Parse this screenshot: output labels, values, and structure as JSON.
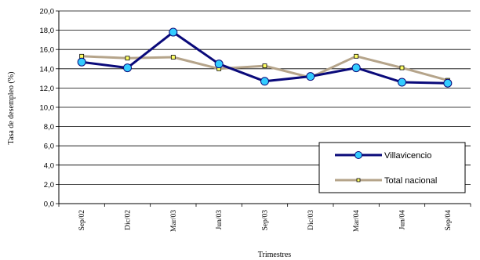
{
  "chart_data": {
    "type": "line",
    "xlabel": "Trimestres",
    "ylabel": "Tasa de desempleo (%)",
    "categories": [
      "Sep/02",
      "Dic/02",
      "Mar/03",
      "Jun/03",
      "Sep/03",
      "Dic/03",
      "Mar/04",
      "Jun/04",
      "Sep/04"
    ],
    "ylim": [
      0,
      20
    ],
    "yticks": [
      "0,0",
      "2,0",
      "4,0",
      "6,0",
      "8,0",
      "10,0",
      "12,0",
      "14,0",
      "16,0",
      "18,0",
      "20,0"
    ],
    "grid": true,
    "legend_position": "bottom-right",
    "series": [
      {
        "name": "Villavicencio",
        "values": [
          14.7,
          14.1,
          17.8,
          14.5,
          12.7,
          13.2,
          14.1,
          12.6,
          12.5
        ],
        "line_color": "#0a0a7a",
        "marker": "circle",
        "marker_color": "#33ccff"
      },
      {
        "name": "Total nacional",
        "values": [
          15.3,
          15.1,
          15.2,
          14.0,
          14.3,
          13.1,
          15.3,
          14.1,
          12.8
        ],
        "line_color": "#b5a48a",
        "marker": "square",
        "marker_color": "#ffff66"
      }
    ]
  }
}
